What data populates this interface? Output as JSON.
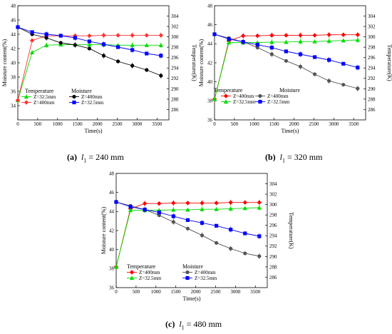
{
  "chart_data": [
    {
      "type": "line",
      "caption": {
        "tag": "(a)",
        "var": "l",
        "sub": "1",
        "rest": " = 240 mm"
      },
      "xlabel": "Time(s)",
      "ylabel": "Moisture content(%)",
      "y2label": "Temperature(K)",
      "xlim": [
        0,
        3800
      ],
      "ylim": [
        32,
        48
      ],
      "y2lim": [
        284,
        306
      ],
      "xticks": [
        "0",
        "500",
        "1000",
        "1500",
        "2000",
        "2500",
        "3000",
        "3500"
      ],
      "yticks": [
        "34",
        "36",
        "38",
        "40",
        "42",
        "44",
        "46",
        "48"
      ],
      "y2ticks": [
        "286",
        "288",
        "290",
        "292",
        "294",
        "296",
        "298",
        "300",
        "302",
        "304"
      ],
      "legend": {
        "temperature_title": "Temperature",
        "moisture_title": "Moisture",
        "temperature_entries": [
          "Z=32.5mm",
          "Z=400mm"
        ],
        "moisture_entries": [
          "Z=400mm",
          "Z=32.5mm"
        ]
      },
      "series": [
        {
          "name": "Z=32.5mm",
          "group": "Temperature",
          "axis": "right",
          "color": "#00dd00",
          "marker": "triangle",
          "x": [
            0,
            360,
            720,
            1080,
            1440,
            1800,
            2160,
            2520,
            2880,
            3240,
            3600
          ],
          "y": [
            287.8,
            297.0,
            298.4,
            298.5,
            298.5,
            298.5,
            298.5,
            298.4,
            298.4,
            298.4,
            298.4
          ]
        },
        {
          "name": "Z=400mm",
          "group": "Temperature",
          "axis": "right",
          "color": "#ff3333",
          "marker": "diamond",
          "x": [
            0,
            360,
            720,
            1080,
            1440,
            1800,
            2160,
            2520,
            2880,
            3240,
            3600
          ],
          "y": [
            287.8,
            299.3,
            300.2,
            300.2,
            300.2,
            300.2,
            300.3,
            300.3,
            300.3,
            300.3,
            300.3
          ]
        },
        {
          "name": "Z=400mm",
          "group": "Moisture",
          "axis": "left",
          "color": "#000000",
          "marker": "circle",
          "x": [
            0,
            360,
            720,
            1080,
            1440,
            1800,
            2160,
            2520,
            2880,
            3240,
            3600
          ],
          "y": [
            45.0,
            44.0,
            43.5,
            42.8,
            42.5,
            42.0,
            41.0,
            40.2,
            39.6,
            39.0,
            38.2
          ]
        },
        {
          "name": "Z=32.5mm",
          "group": "Moisture",
          "axis": "left",
          "color": "#0000ff",
          "marker": "square",
          "x": [
            0,
            360,
            720,
            1080,
            1440,
            1800,
            2160,
            2520,
            2880,
            3240,
            3600
          ],
          "y": [
            45.0,
            44.3,
            44.0,
            43.8,
            43.5,
            43.0,
            42.6,
            42.2,
            41.8,
            41.3,
            41.0
          ]
        }
      ]
    },
    {
      "type": "line",
      "caption": {
        "tag": "(b)",
        "var": "l",
        "sub": "1",
        "rest": " = 320 mm"
      },
      "xlabel": "Time(s)",
      "ylabel": "Moisture content(%)",
      "y2label": "Temperature(K)",
      "xlim": [
        0,
        3800
      ],
      "ylim": [
        36,
        48
      ],
      "y2lim": [
        284,
        306
      ],
      "xticks": [
        "0",
        "500",
        "1000",
        "1500",
        "2000",
        "2500",
        "3000",
        "3500"
      ],
      "yticks": [
        "36",
        "38",
        "40",
        "42",
        "44",
        "46",
        "48"
      ],
      "y2ticks": [
        "286",
        "288",
        "290",
        "292",
        "294",
        "296",
        "298",
        "300",
        "302",
        "304"
      ],
      "legend": {
        "temperature_title": "Temperature",
        "moisture_title": "Moisture",
        "temperature_entries": [
          "Z=400mm",
          "Z=32.5mm"
        ],
        "moisture_entries": [
          "Z=400mm",
          "Z=32.5mm"
        ]
      },
      "series": [
        {
          "name": "Z=400mm",
          "group": "Temperature",
          "axis": "right",
          "color": "#ff0000",
          "marker": "diamond",
          "x": [
            0,
            360,
            720,
            1080,
            1440,
            1800,
            2160,
            2520,
            2880,
            3240,
            3600
          ],
          "y": [
            288.0,
            299.2,
            300.2,
            300.2,
            300.3,
            300.3,
            300.3,
            300.3,
            300.4,
            300.4,
            300.4
          ]
        },
        {
          "name": "Z=32.5mm",
          "group": "Temperature",
          "axis": "right",
          "color": "#00dd00",
          "marker": "triangle",
          "x": [
            0,
            360,
            720,
            1080,
            1440,
            1800,
            2160,
            2520,
            2880,
            3240,
            3600
          ],
          "y": [
            288.0,
            298.9,
            298.9,
            298.9,
            299.0,
            299.0,
            299.1,
            299.1,
            299.2,
            299.3,
            299.4
          ]
        },
        {
          "name": "Z=400mm",
          "group": "Moisture",
          "axis": "left",
          "color": "#555555",
          "marker": "circle",
          "x": [
            0,
            360,
            720,
            1080,
            1440,
            1800,
            2160,
            2520,
            2880,
            3240,
            3600
          ],
          "y": [
            45.0,
            44.6,
            44.2,
            43.6,
            42.9,
            42.2,
            41.6,
            40.8,
            40.1,
            39.7,
            39.3
          ]
        },
        {
          "name": "Z=32.5mm",
          "group": "Moisture",
          "axis": "left",
          "color": "#0000ff",
          "marker": "square",
          "x": [
            0,
            360,
            720,
            1080,
            1440,
            1800,
            2160,
            2520,
            2880,
            3240,
            3600
          ],
          "y": [
            45.0,
            44.5,
            44.2,
            43.9,
            43.6,
            43.2,
            42.9,
            42.6,
            42.3,
            41.9,
            41.5
          ]
        }
      ]
    },
    {
      "type": "line",
      "caption": {
        "tag": "(c)",
        "var": "l",
        "sub": "1",
        "rest": " = 480 mm"
      },
      "xlabel": "Time(s)",
      "ylabel": "Moisture content(%)",
      "y2label": "Temperature(K)",
      "xlim": [
        0,
        3800
      ],
      "ylim": [
        36,
        48
      ],
      "y2lim": [
        284,
        306
      ],
      "xticks": [
        "0",
        "500",
        "1000",
        "1500",
        "2000",
        "2500",
        "3000",
        "3500"
      ],
      "yticks": [
        "36",
        "38",
        "40",
        "42",
        "44",
        "46",
        "48"
      ],
      "y2ticks": [
        "286",
        "288",
        "290",
        "292",
        "294",
        "296",
        "298",
        "300",
        "302",
        "304"
      ],
      "legend": {
        "temperature_title": "Temperature",
        "moisture_title": "Moisture",
        "temperature_entries": [
          "Z=400mm",
          "Z=32.5mm"
        ],
        "moisture_entries": [
          "Z=400mm",
          "Z=32.5mm"
        ]
      },
      "series": [
        {
          "name": "Z=400mm",
          "group": "Temperature",
          "axis": "right",
          "color": "#ff0000",
          "marker": "diamond",
          "x": [
            0,
            360,
            720,
            1080,
            1440,
            1800,
            2160,
            2520,
            2880,
            3240,
            3600
          ],
          "y": [
            288.0,
            299.2,
            300.2,
            300.2,
            300.3,
            300.3,
            300.3,
            300.3,
            300.4,
            300.4,
            300.4
          ]
        },
        {
          "name": "Z=32.5mm",
          "group": "Temperature",
          "axis": "right",
          "color": "#00dd00",
          "marker": "triangle",
          "x": [
            0,
            360,
            720,
            1080,
            1440,
            1800,
            2160,
            2520,
            2880,
            3240,
            3600
          ],
          "y": [
            288.0,
            298.9,
            298.9,
            298.9,
            299.0,
            299.0,
            299.1,
            299.1,
            299.2,
            299.3,
            299.4
          ]
        },
        {
          "name": "Z=400mm",
          "group": "Moisture",
          "axis": "left",
          "color": "#555555",
          "marker": "circle",
          "x": [
            0,
            360,
            720,
            1080,
            1440,
            1800,
            2160,
            2520,
            2880,
            3240,
            3600
          ],
          "y": [
            45.0,
            44.6,
            44.2,
            43.6,
            42.9,
            42.2,
            41.5,
            40.7,
            40.1,
            39.6,
            39.3
          ]
        },
        {
          "name": "Z=32.5mm",
          "group": "Moisture",
          "axis": "left",
          "color": "#0000ff",
          "marker": "square",
          "x": [
            0,
            360,
            720,
            1080,
            1440,
            1800,
            2160,
            2520,
            2880,
            3240,
            3600
          ],
          "y": [
            45.0,
            44.5,
            44.2,
            43.9,
            43.5,
            43.1,
            42.8,
            42.5,
            42.1,
            41.7,
            41.4
          ]
        }
      ]
    }
  ]
}
